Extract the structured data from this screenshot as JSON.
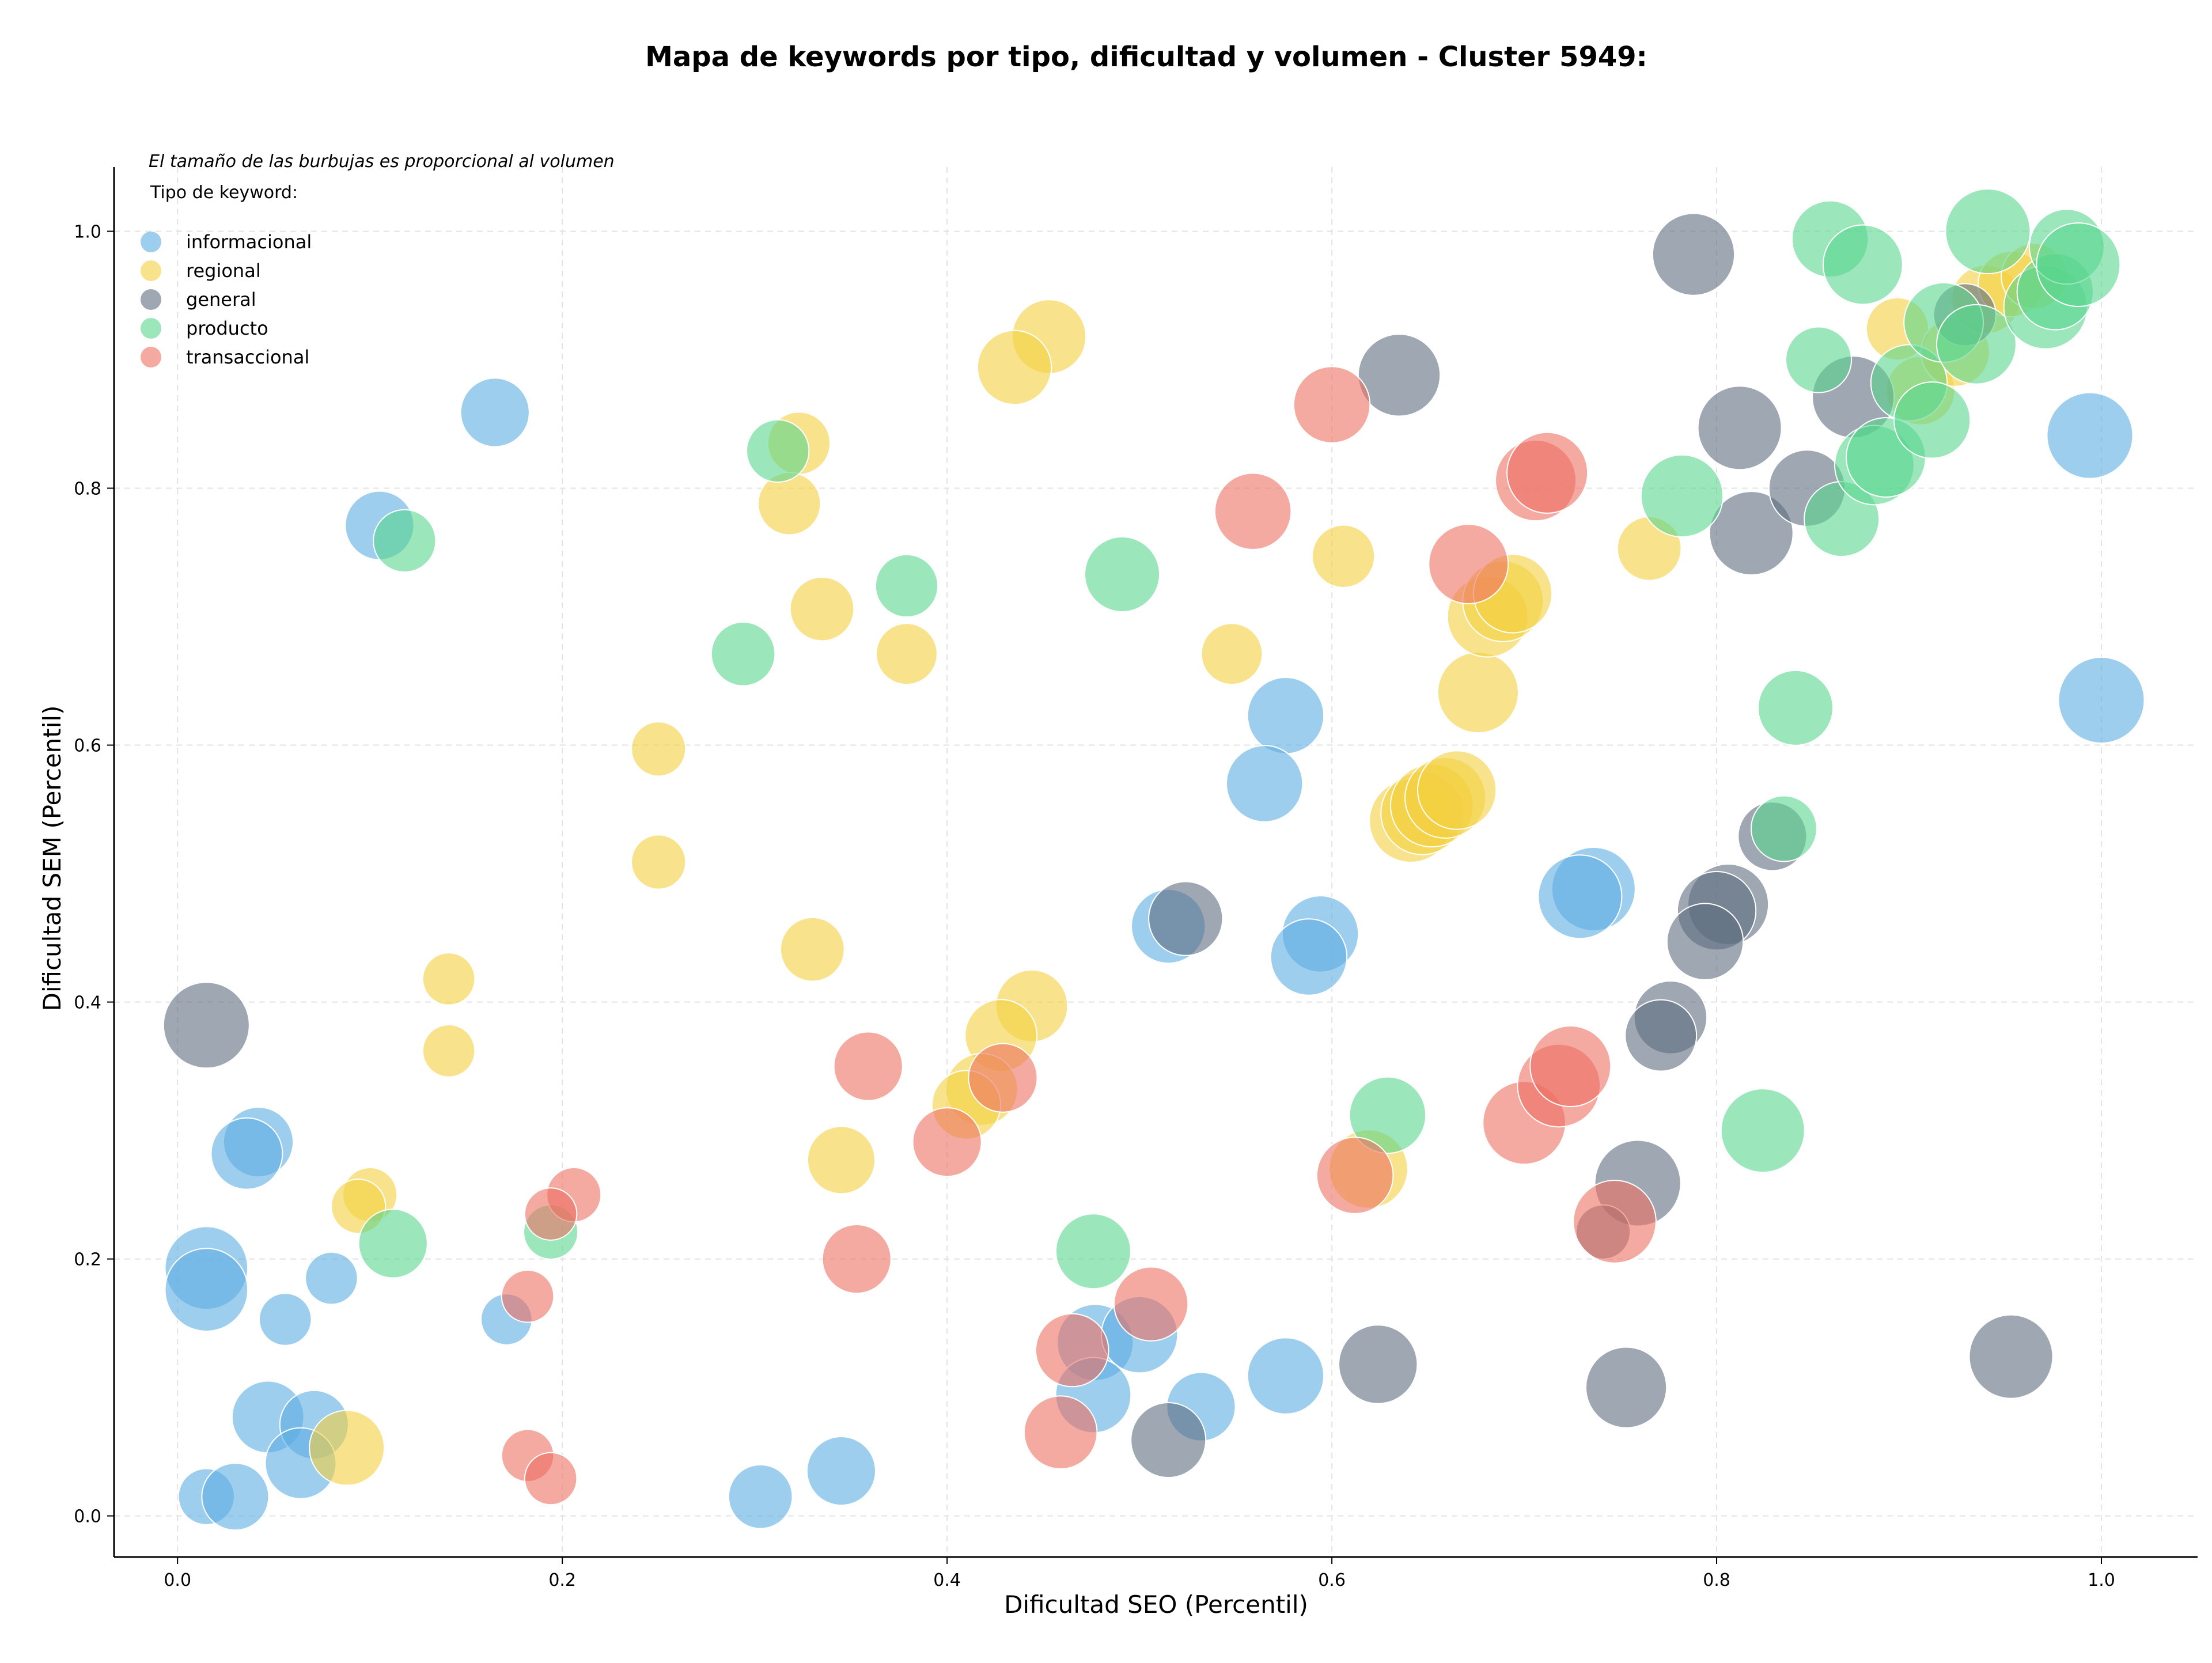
{
  "chart_data": {
    "type": "scatter",
    "title": "Mapa de keywords por tipo, dificultad y volumen - Cluster 5949:",
    "subtitle": "El tamaño de las burbujas es proporcional al volumen",
    "xlabel": "Dificultad SEO (Percentil)",
    "ylabel": "Dificultad SEM (Percentil)",
    "xlim": [
      -0.033,
      1.05
    ],
    "ylim": [
      -0.032,
      1.05
    ],
    "xticks": [
      "0.0",
      "0.2",
      "0.4",
      "0.6",
      "0.8",
      "1.0"
    ],
    "yticks": [
      "0.0",
      "0.2",
      "0.4",
      "0.6",
      "0.8",
      "1.0"
    ],
    "grid": true,
    "legend": {
      "title": "Tipo de keyword:",
      "placement": "top-left"
    },
    "series": [
      {
        "name": "informacional",
        "color": "#5DADE2",
        "points": [
          {
            "x": 0.165,
            "y": 0.859,
            "s": 0.3
          },
          {
            "x": 0.105,
            "y": 0.771,
            "s": 0.3
          },
          {
            "x": 0.042,
            "y": 0.291,
            "s": 0.32
          },
          {
            "x": 0.036,
            "y": 0.282,
            "s": 0.35
          },
          {
            "x": 0.015,
            "y": 0.193,
            "s": 0.6
          },
          {
            "x": 0.015,
            "y": 0.176,
            "s": 0.6
          },
          {
            "x": 0.08,
            "y": 0.185,
            "s": 0.08
          },
          {
            "x": 0.056,
            "y": 0.153,
            "s": 0.08
          },
          {
            "x": 0.171,
            "y": 0.153,
            "s": 0.07
          },
          {
            "x": 0.047,
            "y": 0.077,
            "s": 0.36
          },
          {
            "x": 0.071,
            "y": 0.071,
            "s": 0.3
          },
          {
            "x": 0.064,
            "y": 0.041,
            "s": 0.34
          },
          {
            "x": 0.015,
            "y": 0.015,
            "s": 0.12
          },
          {
            "x": 0.03,
            "y": 0.015,
            "s": 0.27
          },
          {
            "x": 0.303,
            "y": 0.015,
            "s": 0.22
          },
          {
            "x": 0.345,
            "y": 0.035,
            "s": 0.3
          },
          {
            "x": 0.994,
            "y": 0.841,
            "s": 0.68
          },
          {
            "x": 1.0,
            "y": 0.635,
            "s": 0.68
          },
          {
            "x": 0.576,
            "y": 0.623,
            "s": 0.45
          },
          {
            "x": 0.565,
            "y": 0.57,
            "s": 0.45
          },
          {
            "x": 0.594,
            "y": 0.453,
            "s": 0.45
          },
          {
            "x": 0.588,
            "y": 0.435,
            "s": 0.45
          },
          {
            "x": 0.515,
            "y": 0.459,
            "s": 0.4
          },
          {
            "x": 0.736,
            "y": 0.488,
            "s": 0.62
          },
          {
            "x": 0.729,
            "y": 0.482,
            "s": 0.62
          },
          {
            "x": 0.477,
            "y": 0.135,
            "s": 0.45
          },
          {
            "x": 0.5,
            "y": 0.141,
            "s": 0.45
          },
          {
            "x": 0.476,
            "y": 0.094,
            "s": 0.43
          },
          {
            "x": 0.532,
            "y": 0.085,
            "s": 0.3
          },
          {
            "x": 0.576,
            "y": 0.109,
            "s": 0.45
          }
        ]
      },
      {
        "name": "regional",
        "color": "#F4D03F",
        "points": [
          {
            "x": 0.453,
            "y": 0.918,
            "s": 0.4
          },
          {
            "x": 0.435,
            "y": 0.894,
            "s": 0.4
          },
          {
            "x": 0.323,
            "y": 0.835,
            "s": 0.2
          },
          {
            "x": 0.318,
            "y": 0.788,
            "s": 0.2
          },
          {
            "x": 0.335,
            "y": 0.706,
            "s": 0.22
          },
          {
            "x": 0.379,
            "y": 0.671,
            "s": 0.18
          },
          {
            "x": 0.548,
            "y": 0.671,
            "s": 0.18
          },
          {
            "x": 0.606,
            "y": 0.747,
            "s": 0.2
          },
          {
            "x": 0.25,
            "y": 0.597,
            "s": 0.1
          },
          {
            "x": 0.25,
            "y": 0.509,
            "s": 0.1
          },
          {
            "x": 0.141,
            "y": 0.418,
            "s": 0.08
          },
          {
            "x": 0.141,
            "y": 0.362,
            "s": 0.08
          },
          {
            "x": 0.33,
            "y": 0.441,
            "s": 0.22
          },
          {
            "x": 0.345,
            "y": 0.277,
            "s": 0.28
          },
          {
            "x": 0.444,
            "y": 0.397,
            "s": 0.36
          },
          {
            "x": 0.428,
            "y": 0.374,
            "s": 0.36
          },
          {
            "x": 0.418,
            "y": 0.332,
            "s": 0.36
          },
          {
            "x": 0.41,
            "y": 0.32,
            "s": 0.3
          },
          {
            "x": 0.1,
            "y": 0.25,
            "s": 0.1
          },
          {
            "x": 0.094,
            "y": 0.241,
            "s": 0.1
          },
          {
            "x": 0.088,
            "y": 0.053,
            "s": 0.42
          },
          {
            "x": 0.765,
            "y": 0.753,
            "s": 0.22
          },
          {
            "x": 0.676,
            "y": 0.641,
            "s": 0.55
          },
          {
            "x": 0.681,
            "y": 0.7,
            "s": 0.55
          },
          {
            "x": 0.689,
            "y": 0.712,
            "s": 0.55
          },
          {
            "x": 0.694,
            "y": 0.718,
            "s": 0.5
          },
          {
            "x": 0.641,
            "y": 0.541,
            "s": 0.6
          },
          {
            "x": 0.647,
            "y": 0.547,
            "s": 0.6
          },
          {
            "x": 0.652,
            "y": 0.553,
            "s": 0.6
          },
          {
            "x": 0.659,
            "y": 0.559,
            "s": 0.55
          },
          {
            "x": 0.665,
            "y": 0.565,
            "s": 0.5
          },
          {
            "x": 0.619,
            "y": 0.27,
            "s": 0.5
          },
          {
            "x": 0.894,
            "y": 0.924,
            "s": 0.2
          },
          {
            "x": 0.906,
            "y": 0.876,
            "s": 0.3
          },
          {
            "x": 0.924,
            "y": 0.906,
            "s": 0.3
          },
          {
            "x": 0.94,
            "y": 0.947,
            "s": 0.3
          },
          {
            "x": 0.953,
            "y": 0.959,
            "s": 0.25
          },
          {
            "x": 0.965,
            "y": 0.965,
            "s": 0.25
          }
        ]
      },
      {
        "name": "general",
        "color": "#5D6D7E",
        "points": [
          {
            "x": 0.015,
            "y": 0.382,
            "s": 0.68
          },
          {
            "x": 0.788,
            "y": 0.982,
            "s": 0.58
          },
          {
            "x": 0.635,
            "y": 0.888,
            "s": 0.58
          },
          {
            "x": 0.812,
            "y": 0.847,
            "s": 0.62
          },
          {
            "x": 0.818,
            "y": 0.765,
            "s": 0.62
          },
          {
            "x": 0.871,
            "y": 0.871,
            "s": 0.58
          },
          {
            "x": 0.847,
            "y": 0.8,
            "s": 0.45
          },
          {
            "x": 0.929,
            "y": 0.935,
            "s": 0.2
          },
          {
            "x": 0.524,
            "y": 0.465,
            "s": 0.4
          },
          {
            "x": 0.829,
            "y": 0.529,
            "s": 0.3
          },
          {
            "x": 0.806,
            "y": 0.476,
            "s": 0.55
          },
          {
            "x": 0.8,
            "y": 0.471,
            "s": 0.5
          },
          {
            "x": 0.794,
            "y": 0.447,
            "s": 0.45
          },
          {
            "x": 0.776,
            "y": 0.388,
            "s": 0.38
          },
          {
            "x": 0.771,
            "y": 0.374,
            "s": 0.35
          },
          {
            "x": 0.759,
            "y": 0.259,
            "s": 0.68
          },
          {
            "x": 0.741,
            "y": 0.221,
            "s": 0.1
          },
          {
            "x": 0.624,
            "y": 0.118,
            "s": 0.5
          },
          {
            "x": 0.753,
            "y": 0.1,
            "s": 0.55
          },
          {
            "x": 0.515,
            "y": 0.059,
            "s": 0.42
          },
          {
            "x": 0.953,
            "y": 0.124,
            "s": 0.62
          }
        ]
      },
      {
        "name": "producto",
        "color": "#58D68D",
        "points": [
          {
            "x": 0.118,
            "y": 0.759,
            "s": 0.2
          },
          {
            "x": 0.312,
            "y": 0.829,
            "s": 0.2
          },
          {
            "x": 0.379,
            "y": 0.724,
            "s": 0.2
          },
          {
            "x": 0.294,
            "y": 0.671,
            "s": 0.22
          },
          {
            "x": 0.491,
            "y": 0.733,
            "s": 0.42
          },
          {
            "x": 0.194,
            "y": 0.221,
            "s": 0.1
          },
          {
            "x": 0.112,
            "y": 0.212,
            "s": 0.3
          },
          {
            "x": 0.476,
            "y": 0.206,
            "s": 0.42
          },
          {
            "x": 0.629,
            "y": 0.312,
            "s": 0.45
          },
          {
            "x": 0.824,
            "y": 0.3,
            "s": 0.62
          },
          {
            "x": 0.835,
            "y": 0.535,
            "s": 0.25
          },
          {
            "x": 0.841,
            "y": 0.629,
            "s": 0.42
          },
          {
            "x": 0.782,
            "y": 0.794,
            "s": 0.58
          },
          {
            "x": 0.865,
            "y": 0.776,
            "s": 0.42
          },
          {
            "x": 0.859,
            "y": 0.994,
            "s": 0.45
          },
          {
            "x": 0.876,
            "y": 0.974,
            "s": 0.52
          },
          {
            "x": 0.853,
            "y": 0.9,
            "s": 0.25
          },
          {
            "x": 0.882,
            "y": 0.818,
            "s": 0.52
          },
          {
            "x": 0.888,
            "y": 0.824,
            "s": 0.52
          },
          {
            "x": 0.9,
            "y": 0.882,
            "s": 0.45
          },
          {
            "x": 0.912,
            "y": 0.853,
            "s": 0.45
          },
          {
            "x": 0.918,
            "y": 0.929,
            "s": 0.52
          },
          {
            "x": 0.935,
            "y": 0.912,
            "s": 0.52
          },
          {
            "x": 0.941,
            "y": 1.0,
            "s": 0.65
          },
          {
            "x": 0.971,
            "y": 0.941,
            "s": 0.62
          },
          {
            "x": 0.976,
            "y": 0.953,
            "s": 0.45
          },
          {
            "x": 0.982,
            "y": 0.988,
            "s": 0.42
          },
          {
            "x": 0.988,
            "y": 0.974,
            "s": 0.62
          }
        ]
      },
      {
        "name": "transaccional",
        "color": "#EC7063",
        "points": [
          {
            "x": 0.6,
            "y": 0.865,
            "s": 0.45
          },
          {
            "x": 0.559,
            "y": 0.782,
            "s": 0.45
          },
          {
            "x": 0.671,
            "y": 0.741,
            "s": 0.52
          },
          {
            "x": 0.706,
            "y": 0.806,
            "s": 0.55
          },
          {
            "x": 0.712,
            "y": 0.812,
            "s": 0.55
          },
          {
            "x": 0.359,
            "y": 0.35,
            "s": 0.3
          },
          {
            "x": 0.429,
            "y": 0.341,
            "s": 0.3
          },
          {
            "x": 0.4,
            "y": 0.291,
            "s": 0.3
          },
          {
            "x": 0.353,
            "y": 0.2,
            "s": 0.3
          },
          {
            "x": 0.206,
            "y": 0.25,
            "s": 0.1
          },
          {
            "x": 0.194,
            "y": 0.235,
            "s": 0.08
          },
          {
            "x": 0.182,
            "y": 0.171,
            "s": 0.08
          },
          {
            "x": 0.182,
            "y": 0.047,
            "s": 0.08
          },
          {
            "x": 0.194,
            "y": 0.029,
            "s": 0.08
          },
          {
            "x": 0.459,
            "y": 0.065,
            "s": 0.38
          },
          {
            "x": 0.465,
            "y": 0.129,
            "s": 0.38
          },
          {
            "x": 0.506,
            "y": 0.165,
            "s": 0.4
          },
          {
            "x": 0.612,
            "y": 0.265,
            "s": 0.45
          },
          {
            "x": 0.7,
            "y": 0.306,
            "s": 0.6
          },
          {
            "x": 0.718,
            "y": 0.335,
            "s": 0.6
          },
          {
            "x": 0.724,
            "y": 0.35,
            "s": 0.55
          },
          {
            "x": 0.747,
            "y": 0.229,
            "s": 0.6
          }
        ]
      }
    ]
  }
}
